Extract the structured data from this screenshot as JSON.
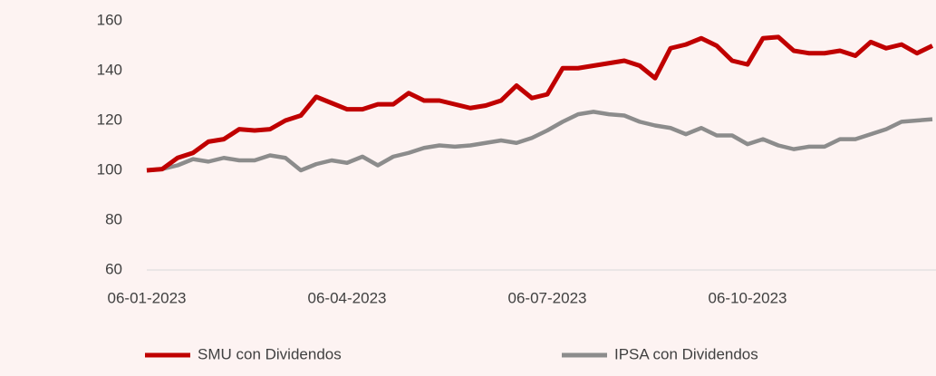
{
  "chart_data": {
    "type": "line",
    "categories": [
      "06-01-2023",
      null,
      null,
      null,
      null,
      null,
      null,
      null,
      null,
      null,
      null,
      null,
      null,
      "06-04-2023",
      null,
      null,
      null,
      null,
      null,
      null,
      null,
      null,
      null,
      null,
      null,
      null,
      "06-07-2023",
      null,
      null,
      null,
      null,
      null,
      null,
      null,
      null,
      null,
      null,
      null,
      null,
      "06-10-2023",
      null,
      null,
      null,
      null,
      null,
      null,
      null,
      null,
      null,
      null,
      null,
      null
    ],
    "series": [
      {
        "name": "SMU con Dividendos",
        "color": "#c00000",
        "values": [
          100,
          100.5,
          105,
          107,
          111.5,
          112.5,
          116.5,
          116,
          116.5,
          120,
          122,
          129.5,
          127,
          124.5,
          124.5,
          126.5,
          126.5,
          131,
          128,
          128,
          126.5,
          125,
          126,
          128,
          134,
          129,
          130.5,
          141,
          141,
          142,
          143,
          144,
          142,
          137,
          149,
          150.5,
          153,
          150,
          144,
          142.5,
          153,
          153.5,
          148,
          147,
          147,
          148,
          146,
          151.5,
          149,
          150.5,
          147,
          150
        ]
      },
      {
        "name": "IPSA con Dividendos",
        "color": "#8c8c8c",
        "values": [
          100,
          100.5,
          102,
          104.5,
          103.5,
          105,
          104,
          104,
          106,
          105,
          100,
          102.5,
          104,
          103,
          105.5,
          102,
          105.5,
          107,
          109,
          110,
          109.5,
          110,
          111,
          112,
          111,
          113,
          116,
          119.5,
          122.5,
          123.5,
          122.5,
          122,
          119.5,
          118,
          117,
          114.5,
          117,
          114,
          114,
          110.5,
          112.5,
          110,
          108.5,
          109.5,
          109.5,
          112.5,
          112.5,
          114.5,
          116.5,
          119.5,
          120,
          120.5
        ]
      }
    ],
    "ylim": [
      60,
      160
    ],
    "yticks": [
      60,
      80,
      100,
      120,
      140,
      160
    ],
    "grid": false,
    "legend": "bottom"
  }
}
